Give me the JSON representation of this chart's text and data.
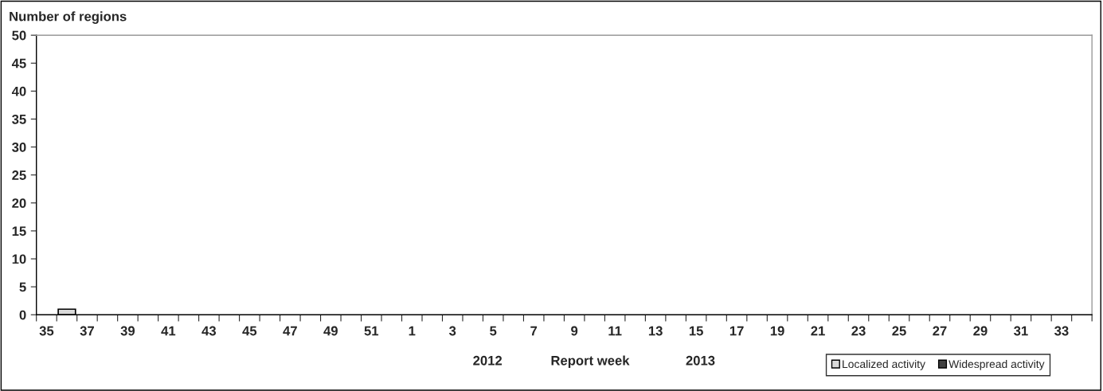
{
  "chart_data": {
    "type": "bar",
    "ylabel": "Number of regions",
    "xlabel": "Report week",
    "annotations": [
      "2012",
      "2013"
    ],
    "categories": [
      "35",
      null,
      "37",
      null,
      "39",
      null,
      "41",
      null,
      "43",
      null,
      "45",
      null,
      "47",
      null,
      "49",
      null,
      "51",
      null,
      "1",
      null,
      "3",
      null,
      "5",
      null,
      "7",
      null,
      "9",
      null,
      "11",
      null,
      "13",
      null,
      "15",
      null,
      "17",
      null,
      "19",
      null,
      "21",
      null,
      "23",
      null,
      "25",
      null,
      "27",
      null,
      "29",
      null,
      "31",
      null,
      "33",
      null
    ],
    "series": [
      {
        "name": "Localized activity",
        "color": "#d9d9d9",
        "values": [
          0,
          1,
          0,
          0,
          0,
          0,
          0,
          0,
          0,
          0,
          0,
          0,
          0,
          0,
          0,
          0,
          0,
          0,
          0,
          0,
          0,
          0,
          0,
          0,
          0,
          0,
          0,
          0,
          0,
          0,
          0,
          0,
          0,
          0,
          0,
          0,
          0,
          0,
          0,
          0,
          0,
          0,
          0,
          0,
          0,
          0,
          0,
          0,
          0,
          0,
          0,
          0
        ]
      },
      {
        "name": "Widespread activity",
        "color": "#404040",
        "values": [
          0,
          0,
          0,
          0,
          0,
          0,
          0,
          0,
          0,
          0,
          0,
          0,
          0,
          0,
          0,
          0,
          0,
          0,
          0,
          0,
          0,
          0,
          0,
          0,
          0,
          0,
          0,
          0,
          0,
          0,
          0,
          0,
          0,
          0,
          0,
          0,
          0,
          0,
          0,
          0,
          0,
          0,
          0,
          0,
          0,
          0,
          0,
          0,
          0,
          0,
          0,
          0
        ]
      }
    ],
    "ylim": [
      0,
      50
    ],
    "yticks": [
      0,
      5,
      10,
      15,
      20,
      25,
      30,
      35,
      40,
      45,
      50
    ],
    "grid": false,
    "legend": "bottom right"
  }
}
